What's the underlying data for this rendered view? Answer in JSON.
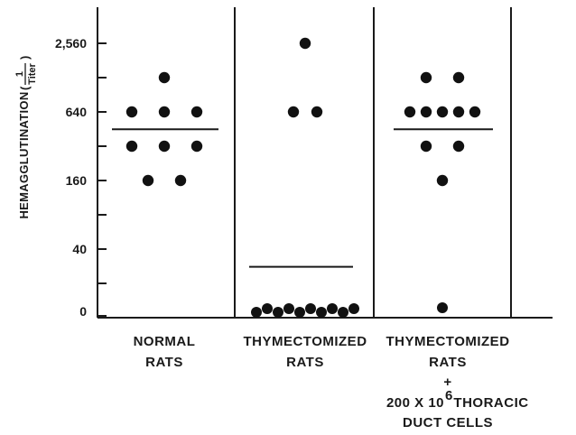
{
  "chart_data": {
    "type": "scatter",
    "ylabel": {
      "text": "HEMAGGLUTINATION",
      "fraction_numerator": "1",
      "fraction_denominator": "Titer",
      "open_paren": "(",
      "close_paren": ")"
    },
    "y_scale": "log2",
    "y_ticks": [
      {
        "value": 0,
        "label": "0"
      },
      {
        "value": 40,
        "label": "40"
      },
      {
        "value": 160,
        "label": "160"
      },
      {
        "value": 640,
        "label": "640"
      },
      {
        "value": 2560,
        "label": "2,560"
      }
    ],
    "groups": [
      {
        "label_lines": [
          "NORMAL",
          "RATS"
        ],
        "points": [
          1280,
          640,
          640,
          640,
          320,
          320,
          320,
          160,
          160
        ],
        "mean": 450
      },
      {
        "label_lines": [
          "THYMECTOMIZED",
          "RATS"
        ],
        "points": [
          2560,
          640,
          640,
          0,
          0,
          0,
          0,
          0,
          0,
          0,
          0,
          0,
          0
        ],
        "mean": 28
      },
      {
        "label_lines": [
          "THYMECTOMIZED",
          "RATS",
          "+",
          "200 X 10",
          "THORACIC",
          "DUCT CELLS"
        ],
        "superscript": "6",
        "points": [
          1280,
          1280,
          640,
          640,
          640,
          640,
          640,
          320,
          320,
          160,
          0
        ],
        "mean": 450
      }
    ],
    "grid": false,
    "legend": "none"
  }
}
